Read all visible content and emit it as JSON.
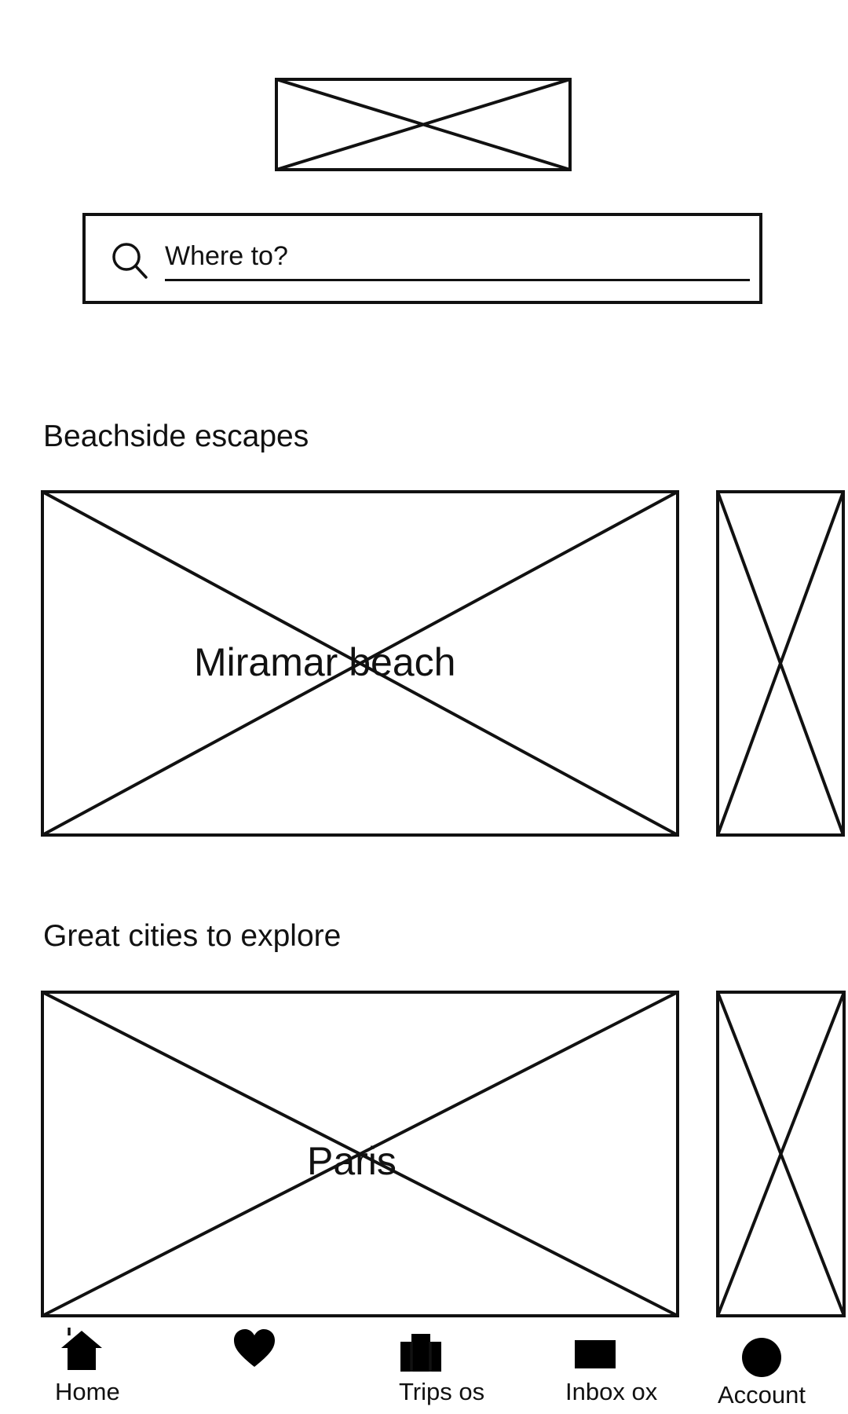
{
  "search": {
    "placeholder": "Where to?"
  },
  "sections": [
    {
      "title": "Beachside escapes",
      "featured_label": "Miramar beach"
    },
    {
      "title": "Great cities to explore",
      "featured_label": "Paris"
    }
  ],
  "bottom_nav": {
    "items": [
      {
        "label": "Home",
        "icon": "home-icon"
      },
      {
        "label": "",
        "icon": "heart-icon"
      },
      {
        "label": "Trips os",
        "icon": "suitcase-icon"
      },
      {
        "label": "Inbox ox",
        "icon": "mail-icon"
      },
      {
        "label": "Account",
        "icon": "user-circle-icon"
      }
    ]
  }
}
